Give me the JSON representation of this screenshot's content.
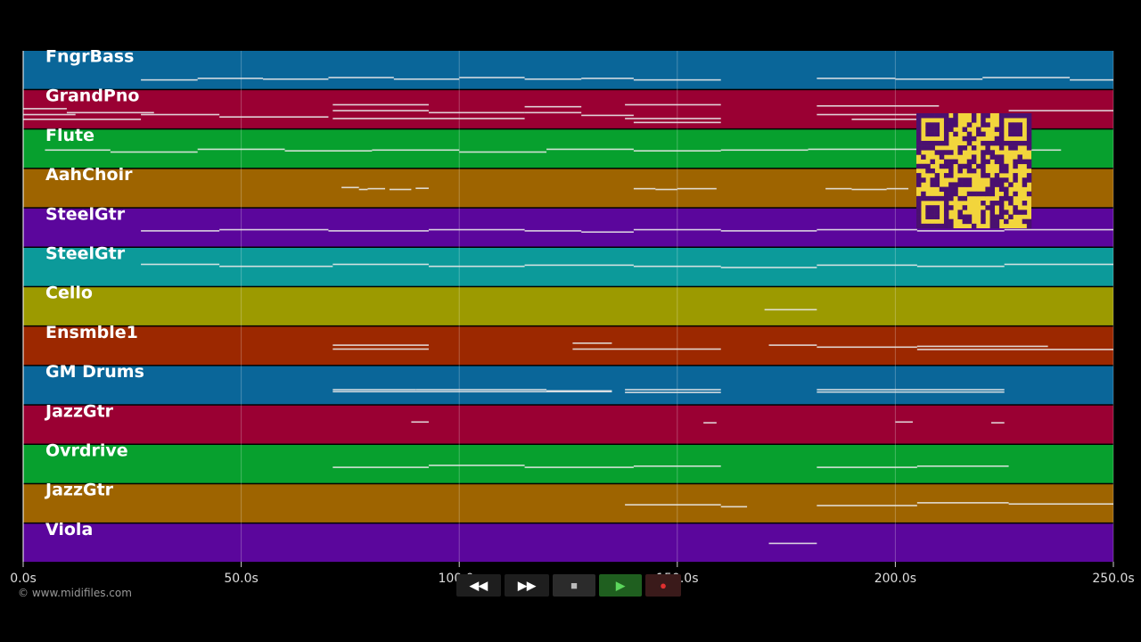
{
  "tracks": [
    {
      "name": "FngrBass",
      "color": "#0a6699",
      "notes": [
        [
          27,
          40,
          0.72
        ],
        [
          40,
          55,
          0.68
        ],
        [
          55,
          70,
          0.7
        ],
        [
          70,
          85,
          0.66
        ],
        [
          85,
          100,
          0.7
        ],
        [
          100,
          115,
          0.66
        ],
        [
          115,
          128,
          0.7
        ],
        [
          128,
          140,
          0.68
        ],
        [
          140,
          160,
          0.72
        ],
        [
          182,
          200,
          0.68
        ],
        [
          200,
          220,
          0.7
        ],
        [
          220,
          240,
          0.66
        ],
        [
          240,
          250,
          0.72
        ]
      ]
    },
    {
      "name": "GrandPno",
      "color": "#9a0033",
      "notes": [
        [
          0,
          10,
          0.45
        ],
        [
          0,
          12,
          0.6
        ],
        [
          10,
          30,
          0.55
        ],
        [
          0,
          27,
          0.72
        ],
        [
          27,
          45,
          0.6
        ],
        [
          45,
          70,
          0.66
        ],
        [
          71,
          93,
          0.35
        ],
        [
          71,
          93,
          0.5
        ],
        [
          71,
          93,
          0.7
        ],
        [
          93,
          115,
          0.55
        ],
        [
          93,
          115,
          0.7
        ],
        [
          115,
          128,
          0.4
        ],
        [
          115,
          128,
          0.55
        ],
        [
          128,
          140,
          0.62
        ],
        [
          138,
          160,
          0.35
        ],
        [
          138,
          160,
          0.7
        ],
        [
          140,
          160,
          0.8
        ],
        [
          182,
          210,
          0.38
        ],
        [
          182,
          225,
          0.6
        ],
        [
          190,
          226,
          0.72
        ],
        [
          226,
          250,
          0.5
        ]
      ]
    },
    {
      "name": "Flute",
      "color": "#07a02e",
      "notes": [
        [
          5,
          20,
          0.5
        ],
        [
          20,
          40,
          0.55
        ],
        [
          40,
          60,
          0.48
        ],
        [
          60,
          80,
          0.52
        ],
        [
          80,
          100,
          0.5
        ],
        [
          100,
          120,
          0.55
        ],
        [
          120,
          140,
          0.48
        ],
        [
          140,
          160,
          0.52
        ],
        [
          160,
          180,
          0.5
        ],
        [
          180,
          205,
          0.48
        ],
        [
          205,
          220,
          0.52
        ],
        [
          220,
          238,
          0.5
        ]
      ]
    },
    {
      "name": "AahChoir",
      "color": "#9e6400",
      "notes": [
        [
          73,
          77,
          0.45
        ],
        [
          77,
          79,
          0.5
        ],
        [
          79,
          83,
          0.48
        ],
        [
          84,
          89,
          0.5
        ],
        [
          90,
          93,
          0.47
        ],
        [
          140,
          145,
          0.48
        ],
        [
          145,
          150,
          0.5
        ],
        [
          150,
          159,
          0.48
        ],
        [
          184,
          190,
          0.48
        ],
        [
          190,
          198,
          0.5
        ],
        [
          198,
          203,
          0.48
        ]
      ]
    },
    {
      "name": "SteelGtr",
      "color": "#5b069c",
      "notes": [
        [
          27,
          45,
          0.55
        ],
        [
          45,
          70,
          0.52
        ],
        [
          70,
          93,
          0.55
        ],
        [
          93,
          115,
          0.52
        ],
        [
          115,
          128,
          0.55
        ],
        [
          128,
          140,
          0.58
        ],
        [
          140,
          160,
          0.52
        ],
        [
          160,
          182,
          0.55
        ],
        [
          182,
          205,
          0.52
        ],
        [
          205,
          225,
          0.55
        ],
        [
          225,
          250,
          0.52
        ]
      ]
    },
    {
      "name": "SteelGtr",
      "color": "#0c9a9a",
      "notes": [
        [
          27,
          45,
          0.4
        ],
        [
          45,
          71,
          0.45
        ],
        [
          71,
          93,
          0.4
        ],
        [
          93,
          115,
          0.45
        ],
        [
          115,
          140,
          0.42
        ],
        [
          140,
          160,
          0.45
        ],
        [
          160,
          182,
          0.48
        ],
        [
          182,
          205,
          0.42
        ],
        [
          205,
          225,
          0.45
        ],
        [
          225,
          250,
          0.4
        ]
      ]
    },
    {
      "name": "Cello",
      "color": "#9c9a00",
      "notes": [
        [
          170,
          182,
          0.55
        ]
      ]
    },
    {
      "name": "Ensmble1",
      "color": "#9c2800",
      "notes": [
        [
          71,
          93,
          0.45
        ],
        [
          71,
          93,
          0.55
        ],
        [
          126,
          135,
          0.4
        ],
        [
          126,
          160,
          0.55
        ],
        [
          171,
          182,
          0.45
        ],
        [
          182,
          205,
          0.5
        ],
        [
          205,
          235,
          0.48
        ],
        [
          205,
          250,
          0.56
        ]
      ]
    },
    {
      "name": "GM Drums",
      "color": "#0a6699",
      "notes": [
        [
          71,
          90,
          0.58
        ],
        [
          71,
          135,
          0.63
        ],
        [
          90,
          120,
          0.58
        ],
        [
          120,
          135,
          0.61
        ],
        [
          138,
          160,
          0.58
        ],
        [
          138,
          160,
          0.65
        ],
        [
          182,
          225,
          0.58
        ],
        [
          182,
          225,
          0.64
        ]
      ]
    },
    {
      "name": "JazzGtr",
      "color": "#9a0033",
      "notes": [
        [
          89,
          93,
          0.4
        ],
        [
          156,
          159,
          0.42
        ],
        [
          200,
          204,
          0.4
        ],
        [
          222,
          225,
          0.42
        ]
      ]
    },
    {
      "name": "Ovrdrive",
      "color": "#07a02e",
      "notes": [
        [
          71,
          93,
          0.55
        ],
        [
          93,
          115,
          0.5
        ],
        [
          115,
          140,
          0.55
        ],
        [
          140,
          160,
          0.52
        ],
        [
          182,
          205,
          0.55
        ],
        [
          205,
          226,
          0.52
        ]
      ]
    },
    {
      "name": "JazzGtr",
      "color": "#9e6400",
      "notes": [
        [
          138,
          160,
          0.5
        ],
        [
          160,
          166,
          0.55
        ],
        [
          182,
          205,
          0.52
        ],
        [
          205,
          226,
          0.45
        ],
        [
          226,
          250,
          0.48
        ]
      ]
    },
    {
      "name": "Viola",
      "color": "#5b069c",
      "notes": [
        [
          171,
          182,
          0.48
        ]
      ]
    }
  ],
  "axis": {
    "min": 0,
    "max": 250,
    "ticks": [
      0,
      50,
      100,
      150,
      200,
      250
    ],
    "tick_labels": [
      "0.0s",
      "50.0s",
      "100.0s",
      "150.0s",
      "200.0s",
      "250.0s"
    ]
  },
  "playhead": 0,
  "controls": {
    "rewind": "◀◀",
    "forward": "▶▶",
    "stop": "■",
    "play": "▶",
    "record": "●"
  },
  "credit": "© www.midifiles.com",
  "qr_color": "#f2d53c"
}
